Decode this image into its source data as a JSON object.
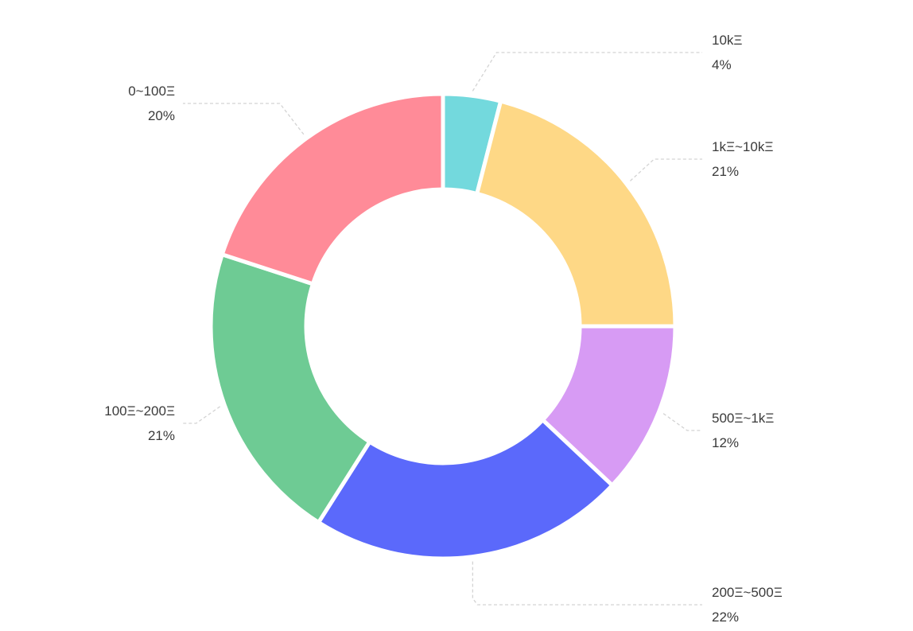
{
  "chart_data": {
    "type": "pie",
    "variant": "donut",
    "title": "",
    "legend": "none",
    "slices": [
      {
        "label": "10kΞ",
        "value": 4,
        "value_label": "4%",
        "color": "#73d9dd",
        "label_side": "right"
      },
      {
        "label": "1kΞ~10kΞ",
        "value": 21,
        "value_label": "21%",
        "color": "#fed886",
        "label_side": "right"
      },
      {
        "label": "500Ξ~1kΞ",
        "value": 12,
        "value_label": "12%",
        "color": "#d79bf4",
        "label_side": "right"
      },
      {
        "label": "200Ξ~500Ξ",
        "value": 22,
        "value_label": "22%",
        "color": "#5b69fb",
        "label_side": "right"
      },
      {
        "label": "100Ξ~200Ξ",
        "value": 21,
        "value_label": "21%",
        "color": "#6ecb94",
        "label_side": "left"
      },
      {
        "label": "0~100Ξ",
        "value": 20,
        "value_label": "20%",
        "color": "#ff8b98",
        "label_side": "left"
      }
    ]
  }
}
